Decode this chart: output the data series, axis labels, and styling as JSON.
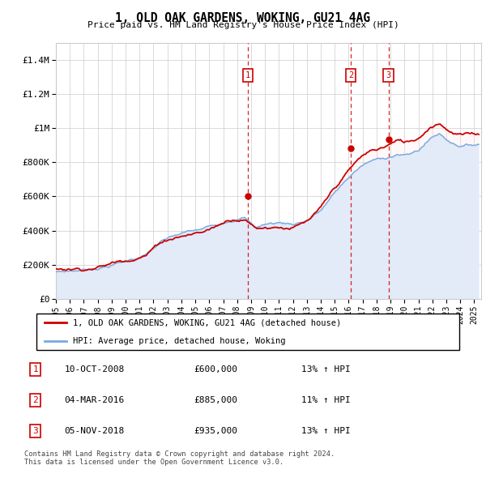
{
  "title": "1, OLD OAK GARDENS, WOKING, GU21 4AG",
  "subtitle": "Price paid vs. HM Land Registry's House Price Index (HPI)",
  "legend_label_red": "1, OLD OAK GARDENS, WOKING, GU21 4AG (detached house)",
  "legend_label_blue": "HPI: Average price, detached house, Woking",
  "footer": "Contains HM Land Registry data © Crown copyright and database right 2024.\nThis data is licensed under the Open Government Licence v3.0.",
  "transactions": [
    {
      "num": 1,
      "date": "10-OCT-2008",
      "price": 600000,
      "hpi_pct": "13% ↑ HPI",
      "date_val": 2008.78
    },
    {
      "num": 2,
      "date": "04-MAR-2016",
      "price": 885000,
      "hpi_pct": "11% ↑ HPI",
      "date_val": 2016.17
    },
    {
      "num": 3,
      "date": "05-NOV-2018",
      "price": 935000,
      "hpi_pct": "13% ↑ HPI",
      "date_val": 2018.85
    }
  ],
  "ylim": [
    0,
    1500000
  ],
  "yticks": [
    0,
    200000,
    400000,
    600000,
    800000,
    1000000,
    1200000,
    1400000
  ],
  "ytick_labels": [
    "£0",
    "£200K",
    "£400K",
    "£600K",
    "£800K",
    "£1M",
    "£1.2M",
    "£1.4M"
  ],
  "red_color": "#cc0000",
  "blue_color": "#7aaadd",
  "fill_color": "#ddeeff",
  "marker_box_color": "#cc0000",
  "vline_color": "#cc0000",
  "background_color": "#ffffff",
  "grid_color": "#cccccc",
  "xmin": 1995.0,
  "xmax": 2025.5
}
